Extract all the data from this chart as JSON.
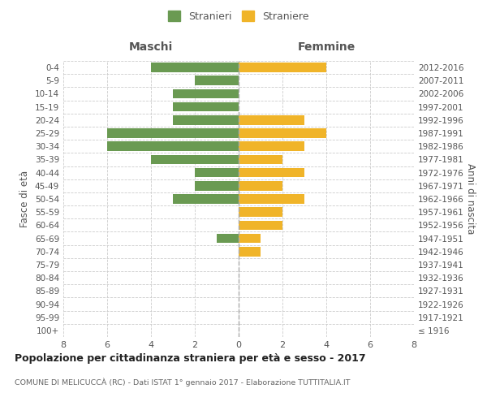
{
  "age_groups": [
    "100+",
    "95-99",
    "90-94",
    "85-89",
    "80-84",
    "75-79",
    "70-74",
    "65-69",
    "60-64",
    "55-59",
    "50-54",
    "45-49",
    "40-44",
    "35-39",
    "30-34",
    "25-29",
    "20-24",
    "15-19",
    "10-14",
    "5-9",
    "0-4"
  ],
  "birth_years": [
    "≤ 1916",
    "1917-1921",
    "1922-1926",
    "1927-1931",
    "1932-1936",
    "1937-1941",
    "1942-1946",
    "1947-1951",
    "1952-1956",
    "1957-1961",
    "1962-1966",
    "1967-1971",
    "1972-1976",
    "1977-1981",
    "1982-1986",
    "1987-1991",
    "1992-1996",
    "1997-2001",
    "2002-2006",
    "2007-2011",
    "2012-2016"
  ],
  "maschi": [
    0,
    0,
    0,
    0,
    0,
    0,
    0,
    1,
    0,
    0,
    3,
    2,
    2,
    4,
    6,
    6,
    3,
    3,
    3,
    2,
    4
  ],
  "femmine": [
    0,
    0,
    0,
    0,
    0,
    0,
    1,
    1,
    2,
    2,
    3,
    2,
    3,
    2,
    3,
    4,
    3,
    0,
    0,
    0,
    4
  ],
  "color_maschi": "#6a9a52",
  "color_femmine": "#f0b429",
  "title_main": "Popolazione per cittadinanza straniera per età e sesso - 2017",
  "title_sub": "COMUNE DI MELICUCCÀ (RC) - Dati ISTAT 1° gennaio 2017 - Elaborazione TUTTITALIA.IT",
  "ylabel_left": "Fasce di età",
  "ylabel_right": "Anni di nascita",
  "label_maschi": "Maschi",
  "label_femmine": "Femmine",
  "legend_maschi": "Stranieri",
  "legend_femmine": "Straniere",
  "xlim": 8,
  "bg_color": "#ffffff",
  "grid_color": "#cccccc",
  "grid_style": "--"
}
